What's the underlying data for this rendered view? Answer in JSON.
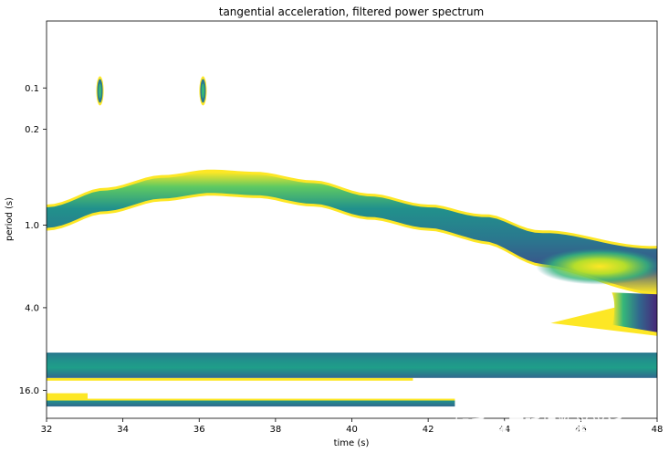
{
  "chart_data": {
    "type": "heatmap",
    "title": "tangential acceleration, filtered power spectrum",
    "xlabel": "time (s)",
    "ylabel": "period (s)",
    "xlim": [
      32,
      48
    ],
    "x_ticks": [
      32,
      34,
      36,
      38,
      40,
      42,
      44,
      46,
      48
    ],
    "y_scale": "log2",
    "ylim": [
      0.0325,
      25.6
    ],
    "y_ticks": [
      0.1,
      0.2,
      1.0,
      4.0,
      16.0
    ],
    "y_tick_labels": [
      "0.1",
      "0.2",
      "1.0",
      "4.0",
      "16.0"
    ],
    "grid": false,
    "colormap": "viridis",
    "regions": [
      {
        "kind": "band",
        "t_start": 32,
        "t_end": 48,
        "period_center": [
          0.9,
          0.68,
          0.55,
          0.5,
          0.52,
          0.6,
          0.75,
          0.9,
          1.1,
          1.5,
          2.1
        ],
        "t_samples": [
          32,
          33.5,
          35,
          36.3,
          37.5,
          39,
          40.5,
          42,
          43.5,
          45,
          48
        ],
        "peak_period": 2.0,
        "peak_time": 46.5
      },
      {
        "kind": "branch",
        "t_start": 45.5,
        "t_end": 48,
        "period_range": [
          3.5,
          5.5
        ]
      },
      {
        "kind": "blob",
        "t": 33.4,
        "period": 0.105
      },
      {
        "kind": "blob",
        "t": 36.1,
        "period": 0.105
      },
      {
        "kind": "strip",
        "t_start": 32,
        "t_end": 48,
        "period_range": [
          8.5,
          13.0
        ]
      },
      {
        "kind": "strip",
        "t_start": 32,
        "t_end": 42.7,
        "period_range": [
          19.0,
          21.0
        ]
      }
    ],
    "colors": {
      "low": "#440154",
      "mid": "#21918c",
      "high": "#fde725"
    }
  },
  "watermark": {
    "line1": "知乎 @哥廷根数学学派",
    "line2": "头条 @哥本哈根诠释2023"
  }
}
